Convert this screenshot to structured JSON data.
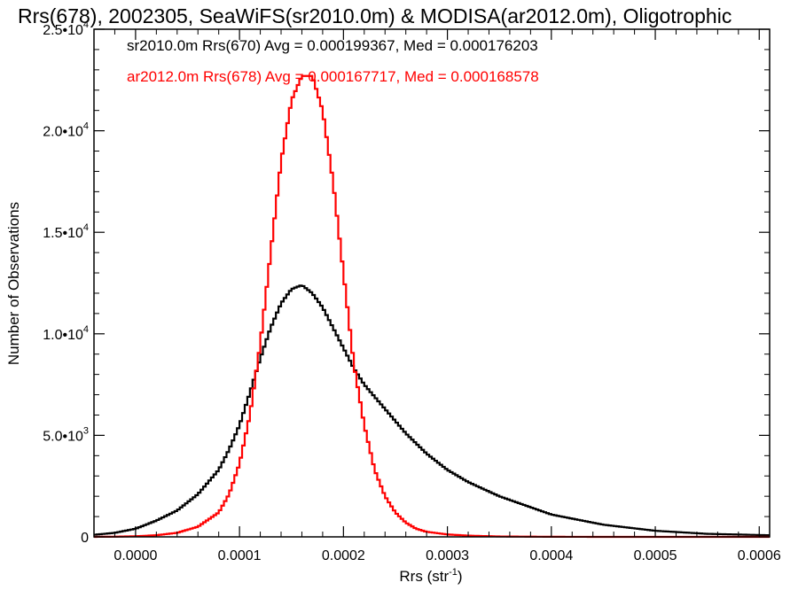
{
  "chart_data": {
    "type": "line",
    "title": "Rrs(678), 2002305, SeaWiFS(sr2010.0m) & MODISA(ar2012.0m), Oligotrophic",
    "xlabel": "Rrs (str",
    "xlabel_sup": "-1",
    "xlabel_end": ")",
    "ylabel": "Number of Observations",
    "xlim": [
      -4e-05,
      0.00061
    ],
    "ylim": [
      0,
      25000
    ],
    "x_ticks": [
      0.0,
      0.0001,
      0.0002,
      0.0003,
      0.0004,
      0.0005,
      0.0006
    ],
    "x_tick_labels": [
      "0.0000",
      "0.0001",
      "0.0002",
      "0.0003",
      "0.0004",
      "0.0005",
      "0.0006"
    ],
    "y_ticks": [
      0,
      5000,
      10000,
      15000,
      20000,
      25000
    ],
    "y_tick_labels": [
      {
        "mant": "0",
        "exp": ""
      },
      {
        "mant": "5.0•10",
        "exp": "3"
      },
      {
        "mant": "1.0•10",
        "exp": "4"
      },
      {
        "mant": "1.5•10",
        "exp": "4"
      },
      {
        "mant": "2.0•10",
        "exp": "4"
      },
      {
        "mant": "2.5•10",
        "exp": "4"
      }
    ],
    "series": [
      {
        "name": "sr2010.0m Rrs(670)",
        "color": "#000000",
        "legend_text": "sr2010.0m Rrs(670) Avg = 0.000199367, Med = 0.000176203",
        "x": [
          -4e-05,
          -2e-05,
          0.0,
          2e-05,
          4e-05,
          6e-05,
          8e-05,
          9e-05,
          0.0001,
          0.00011,
          0.00012,
          0.00013,
          0.00014,
          0.00015,
          0.00016,
          0.00017,
          0.00018,
          0.00019,
          0.0002,
          0.00021,
          0.00022,
          0.00023,
          0.00024,
          0.00025,
          0.00026,
          0.00027,
          0.00028,
          0.0003,
          0.00032,
          0.00035,
          0.0004,
          0.00045,
          0.0005,
          0.00055,
          0.00061
        ],
        "y": [
          100,
          200,
          400,
          800,
          1300,
          2100,
          3300,
          4300,
          5500,
          7100,
          8800,
          10300,
          11500,
          12200,
          12400,
          12000,
          11300,
          10300,
          9300,
          8300,
          7500,
          6900,
          6300,
          5700,
          5100,
          4600,
          4100,
          3300,
          2700,
          2000,
          1100,
          600,
          300,
          150,
          80
        ]
      },
      {
        "name": "ar2012.0m Rrs(678)",
        "color": "#ff0000",
        "legend_text": "ar2012.0m Rrs(678) Avg = 0.000167717, Med = 0.000168578",
        "x": [
          -4e-05,
          -2e-05,
          0.0,
          2e-05,
          4e-05,
          6e-05,
          8e-05,
          9e-05,
          0.0001,
          0.00011,
          0.00012,
          0.00013,
          0.00014,
          0.00015,
          0.00016,
          0.00017,
          0.00018,
          0.00019,
          0.0002,
          0.00021,
          0.00022,
          0.00023,
          0.00024,
          0.00025,
          0.00026,
          0.00027,
          0.00028,
          0.0003,
          0.00032,
          0.00035,
          0.0004,
          0.00045,
          0.0005,
          0.00055,
          0.00061
        ],
        "y": [
          0,
          10,
          30,
          80,
          200,
          500,
          1200,
          2100,
          3600,
          6000,
          9500,
          14000,
          18500,
          21500,
          22700,
          22700,
          21000,
          17500,
          13000,
          8500,
          5500,
          3300,
          2000,
          1200,
          700,
          400,
          250,
          120,
          60,
          20,
          5,
          0,
          0,
          0,
          0
        ]
      }
    ],
    "grid": false,
    "legend_position": "top-left"
  }
}
